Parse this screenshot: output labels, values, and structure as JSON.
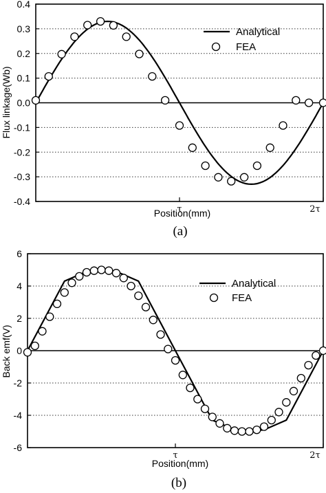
{
  "chart_data": [
    {
      "panel": "(a)",
      "type": "line",
      "xlabel": "Position(mm)",
      "ylabel": "Flux linkage(Wb)",
      "x_ticks": [
        "τ",
        "2τ"
      ],
      "x_range": [
        0,
        2
      ],
      "ylim": [
        -0.4,
        0.4
      ],
      "y_ticks": [
        "0.4",
        "0.3",
        "0.2",
        "0.1",
        "0.0",
        "-0.1",
        "-0.2",
        "-0.3",
        "-0.4"
      ],
      "grid": "horizontal dotted",
      "legend": "top-right",
      "series": [
        {
          "name": "Analytical",
          "style": "solid line",
          "x": [
            0,
            0.1,
            0.2,
            0.3,
            0.4,
            0.5,
            0.6,
            0.7,
            0.8,
            0.9,
            1.0,
            1.1,
            1.2,
            1.3,
            1.4,
            1.5,
            1.6,
            1.7,
            1.8,
            1.9,
            2.0
          ],
          "y": [
            0.0,
            0.102,
            0.194,
            0.267,
            0.314,
            0.33,
            0.314,
            0.267,
            0.194,
            0.102,
            0.0,
            -0.102,
            -0.194,
            -0.267,
            -0.314,
            -0.33,
            -0.314,
            -0.267,
            -0.194,
            -0.102,
            0.0
          ]
        },
        {
          "name": "FEA",
          "style": "open circle markers",
          "x": [
            0,
            0.09,
            0.18,
            0.27,
            0.36,
            0.45,
            0.54,
            0.63,
            0.72,
            0.81,
            0.9,
            1.0,
            1.09,
            1.18,
            1.27,
            1.36,
            1.45,
            1.54,
            1.63,
            1.72,
            1.81,
            1.9,
            2.0
          ],
          "y": [
            0.01,
            0.107,
            0.197,
            0.268,
            0.315,
            0.33,
            0.314,
            0.268,
            0.198,
            0.107,
            0.01,
            -0.092,
            -0.182,
            -0.255,
            -0.302,
            -0.318,
            -0.302,
            -0.255,
            -0.182,
            -0.092,
            0.01,
            0.0,
            0.0
          ]
        }
      ]
    },
    {
      "panel": "(b)",
      "type": "line",
      "xlabel": "Position(mm)",
      "ylabel": "Back emf(V)",
      "x_ticks": [
        "τ",
        "2τ"
      ],
      "x_range": [
        0,
        2
      ],
      "ylim": [
        -6,
        6
      ],
      "y_ticks": [
        "6",
        "4",
        "2",
        "0",
        "-2",
        "-4",
        "-6"
      ],
      "grid": "horizontal dotted",
      "legend": "top-right",
      "series": [
        {
          "name": "Analytical",
          "style": "solid line",
          "x": [
            0,
            0.25,
            0.4,
            0.5,
            0.6,
            0.75,
            1.0,
            1.25,
            1.4,
            1.5,
            1.6,
            1.75,
            2.0
          ],
          "y": [
            0,
            4.3,
            4.9,
            5.0,
            4.9,
            4.3,
            0,
            -4.3,
            -4.9,
            -5.0,
            -4.9,
            -4.3,
            0
          ]
        },
        {
          "name": "FEA",
          "style": "open circle markers",
          "x": [
            0.0,
            0.05,
            0.1,
            0.15,
            0.2,
            0.25,
            0.3,
            0.35,
            0.4,
            0.45,
            0.5,
            0.55,
            0.6,
            0.65,
            0.7,
            0.75,
            0.8,
            0.85,
            0.9,
            0.95,
            1.0,
            1.05,
            1.1,
            1.15,
            1.2,
            1.25,
            1.3,
            1.35,
            1.4,
            1.45,
            1.5,
            1.55,
            1.6,
            1.65,
            1.7,
            1.75,
            1.8,
            1.85,
            1.9,
            1.95,
            2.0
          ],
          "y": [
            -0.1,
            0.3,
            1.2,
            2.1,
            2.9,
            3.6,
            4.2,
            4.6,
            4.85,
            4.95,
            5.0,
            4.95,
            4.8,
            4.5,
            4.0,
            3.4,
            2.7,
            1.9,
            1.0,
            0.1,
            -0.6,
            -1.5,
            -2.3,
            -3.0,
            -3.6,
            -4.1,
            -4.5,
            -4.8,
            -4.95,
            -5.0,
            -5.0,
            -4.9,
            -4.7,
            -4.3,
            -3.8,
            -3.2,
            -2.5,
            -1.7,
            -0.9,
            -0.3,
            0.0
          ]
        }
      ]
    }
  ],
  "colors": {
    "line": "#000000",
    "grid": "#333333",
    "marker_fill": "#ffffff"
  }
}
